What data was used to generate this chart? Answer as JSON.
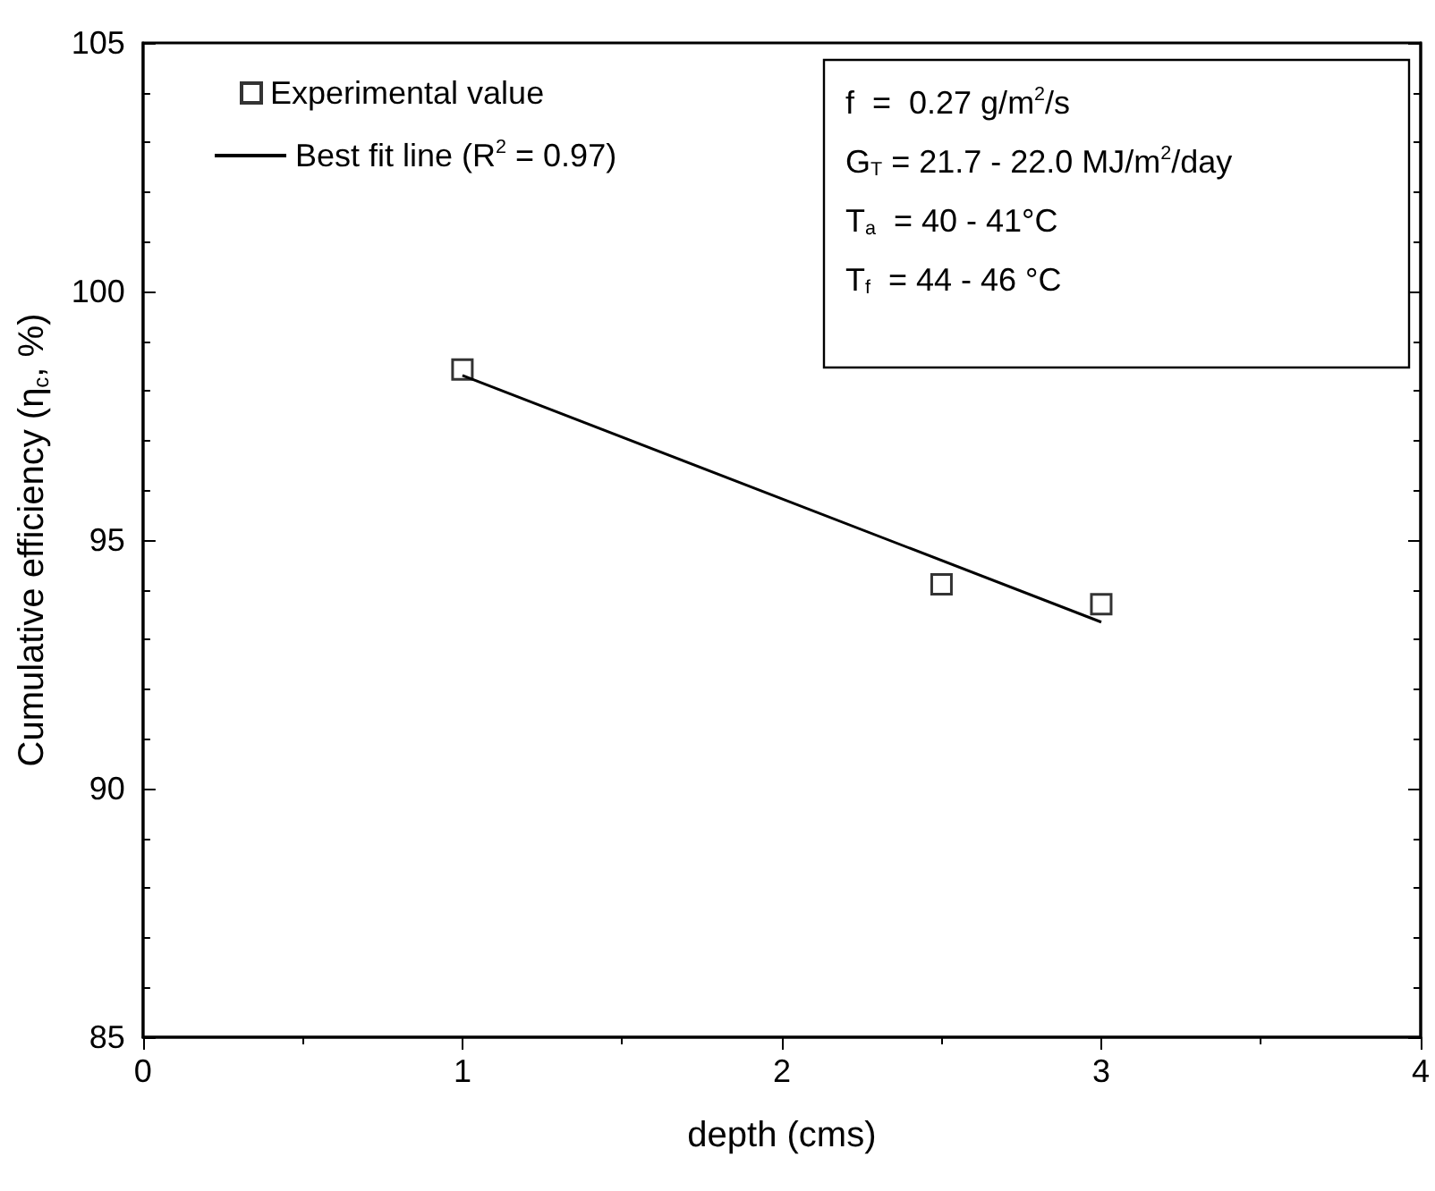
{
  "chart_data": {
    "type": "scatter",
    "xlabel": "depth (cms)",
    "ylabel": "Cumulative efficiency (η$_{c}$, %)",
    "x": [
      1,
      2.5,
      3
    ],
    "series": [
      {
        "name": "Experimental value",
        "color": "#000000",
        "values": [
          98.43,
          94.11,
          93.71
        ]
      },
      {
        "name": "Best fit line (R$^{2}$ = 0.97)",
        "type": "line",
        "marker": "none",
        "color": "#000000",
        "x": [
          1,
          3
        ],
        "values": [
          98.31,
          93.35
        ]
      }
    ],
    "xlim": [
      0,
      4
    ],
    "xticks": [
      0,
      1,
      2,
      3,
      4
    ],
    "ylim": [
      85,
      105
    ],
    "yticks": [
      85,
      90,
      95,
      100,
      105
    ],
    "grid": false,
    "legend": "top left",
    "marker": "square",
    "line_style": "solid",
    "annotations": [
      "f  =  0.27 g/m$^{2}$/s",
      "G$_{T}$ = 21.7 - 22.0 MJ/m$^{2}$/day",
      "T$_{a}$  = 40 - 41°C",
      "T$_{f}$  = 44 - 46 °C"
    ]
  }
}
